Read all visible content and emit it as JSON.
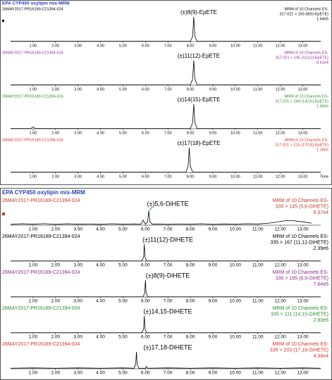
{
  "chart_data": [
    {
      "type": "line",
      "panel_title": "EPA CYP450 oxylipin mix-MRM",
      "sample": "26MAY2017-PR16189-C21394-024",
      "title": "(±)8(9)-EpETE",
      "mrm": [
        "MRM of 10 Channels ES-",
        "317.021 > 155 (8(9)-EpETE)"
      ],
      "intensity": "1.64e5",
      "color": "#000000",
      "line_color": "#000000",
      "x": [
        0,
        8.0,
        8.1,
        8.15,
        8.2,
        8.3,
        13.8
      ],
      "values": [
        1,
        1,
        20,
        100,
        20,
        1,
        1
      ],
      "xlim": [
        0,
        13.8
      ],
      "ylim": [
        0,
        100
      ],
      "xticks": [
        {
          "value": 1,
          "label": "1.00"
        },
        {
          "value": 2,
          "label": "2.00"
        },
        {
          "value": 3,
          "label": "3.00"
        },
        {
          "value": 4,
          "label": "4.00"
        },
        {
          "value": 5,
          "label": "5.00"
        },
        {
          "value": 6,
          "label": "6.00"
        },
        {
          "value": 7,
          "label": "7.00"
        },
        {
          "value": 8,
          "label": "8.00"
        },
        {
          "value": 9,
          "label": "9.00"
        },
        {
          "value": 10,
          "label": "10.00"
        },
        {
          "value": 11,
          "label": "11.00"
        },
        {
          "value": 12,
          "label": "12.00"
        },
        {
          "value": 13,
          "label": "13.00"
        }
      ]
    },
    {
      "type": "line",
      "sample": "26MAY2017-PR16189-C21394-024",
      "title": "(±)11(12)-EpETE",
      "mrm": [
        "MRM of 10 Channels ES-",
        "317.021 > 195 (11(12)-EpETE)"
      ],
      "intensity": "8.61e4",
      "color": "#8e2a8e",
      "line_color": "#000000",
      "x": [
        0,
        8.0,
        8.1,
        8.15,
        8.2,
        8.3,
        13.8
      ],
      "values": [
        1,
        1,
        25,
        100,
        25,
        1,
        1
      ],
      "xlim": [
        0,
        13.8
      ],
      "ylim": [
        0,
        100
      ],
      "xticks": [
        {
          "value": 1,
          "label": "1.00"
        },
        {
          "value": 2,
          "label": "2.00"
        },
        {
          "value": 3,
          "label": "3.00"
        },
        {
          "value": 4,
          "label": "4.00"
        },
        {
          "value": 5,
          "label": "5.00"
        },
        {
          "value": 6,
          "label": "6.00"
        },
        {
          "value": 7,
          "label": "7.00"
        },
        {
          "value": 8,
          "label": "8.00"
        },
        {
          "value": 9,
          "label": "9.00"
        },
        {
          "value": 10,
          "label": "10.00"
        },
        {
          "value": 11,
          "label": "11.00"
        },
        {
          "value": 12,
          "label": "12.00"
        },
        {
          "value": 13,
          "label": "13.00"
        }
      ]
    },
    {
      "type": "line",
      "sample": "26MAY2017-PR16189-C21394-024",
      "title": "(±)14(15)-EpETE",
      "mrm": [
        "MRM of 10 Channels ES-",
        "317.021 > 249 (14(15)-EpETE)"
      ],
      "intensity": "1.68e5",
      "color": "#2e8b2e",
      "line_color": "#000000",
      "x": [
        0,
        0.9,
        1.0,
        1.1,
        8.0,
        8.1,
        8.15,
        8.2,
        8.3,
        13.8
      ],
      "values": [
        1,
        1,
        8,
        1,
        1,
        25,
        100,
        25,
        1,
        1
      ],
      "xlim": [
        0,
        13.8
      ],
      "ylim": [
        0,
        100
      ],
      "xticks": [
        {
          "value": 1,
          "label": "1.00"
        },
        {
          "value": 2,
          "label": "2.00"
        },
        {
          "value": 3,
          "label": "3.00"
        },
        {
          "value": 4,
          "label": "4.00"
        },
        {
          "value": 5,
          "label": "5.00"
        },
        {
          "value": 6,
          "label": "6.00"
        },
        {
          "value": 7,
          "label": "7.00"
        },
        {
          "value": 8,
          "label": "8.00"
        },
        {
          "value": 9,
          "label": "9.00"
        },
        {
          "value": 10,
          "label": "10.00"
        },
        {
          "value": 11,
          "label": "11.00"
        },
        {
          "value": 12,
          "label": "12.00"
        },
        {
          "value": 13,
          "label": "13.00"
        }
      ]
    },
    {
      "type": "line",
      "sample": "26MAY2017-PR16189-C21394-024",
      "title": "(±)17(18)-EpETE",
      "mrm": [
        "MRM of 10 Channels ES-",
        "317.021 > 215 (17(18)-EpETE)"
      ],
      "intensity": "1.39e5",
      "color": "#d9302c",
      "line_color": "#000000",
      "x_label": "Time",
      "x": [
        0,
        7.8,
        7.9,
        7.95,
        8.0,
        8.1,
        13.8
      ],
      "values": [
        1,
        1,
        25,
        100,
        25,
        1,
        1
      ],
      "xlim": [
        0,
        13.8
      ],
      "ylim": [
        0,
        100
      ],
      "xticks": [
        {
          "value": 1,
          "label": "1.00"
        },
        {
          "value": 2,
          "label": "2.00"
        },
        {
          "value": 3,
          "label": "3.00"
        },
        {
          "value": 4,
          "label": "4.00"
        },
        {
          "value": 5,
          "label": "5.00"
        },
        {
          "value": 6,
          "label": "6.00"
        },
        {
          "value": 7,
          "label": "7.00"
        },
        {
          "value": 8,
          "label": "8.00"
        },
        {
          "value": 9,
          "label": "9.00"
        },
        {
          "value": 10,
          "label": "10.00"
        },
        {
          "value": 11,
          "label": "11.00"
        },
        {
          "value": 12,
          "label": "12.00"
        },
        {
          "value": 13,
          "label": "13.00"
        }
      ]
    },
    {
      "type": "line",
      "panel_title": "EPA CYP450 oxylipin mix-MRM",
      "sample": "26MAY2017-PR16189-C21394-024",
      "title": "(±)5,6-DiHETE",
      "mrm": [
        "MRM of 10 Channels ES-",
        "335 > 145 (5,6-DiHETE)"
      ],
      "intensity": "6.37e4",
      "color": "#c0392b",
      "line_color": "#000000",
      "x": [
        0,
        0.5,
        1,
        1.5,
        2,
        2.5,
        3,
        3.5,
        4,
        4.5,
        5,
        5.5,
        5.8,
        5.9,
        6.0,
        6.1,
        6.15,
        6.2,
        6.3,
        6.5,
        7,
        7.5,
        8,
        8.5,
        9,
        9.5,
        10,
        10.5,
        11,
        11.5,
        12,
        12.3,
        12.6,
        13,
        13.4
      ],
      "values": [
        5,
        8,
        6,
        9,
        5,
        8,
        6,
        7,
        5,
        8,
        6,
        7,
        6,
        30,
        6,
        20,
        85,
        20,
        6,
        7,
        5,
        7,
        6,
        8,
        5,
        7,
        6,
        8,
        7,
        12,
        22,
        28,
        26,
        20,
        12
      ],
      "xlim": [
        0,
        13.8
      ],
      "ylim": [
        0,
        100
      ],
      "xticks": [
        {
          "value": 1,
          "label": "1.00"
        },
        {
          "value": 2,
          "label": "2.00"
        },
        {
          "value": 3,
          "label": "3.00"
        },
        {
          "value": 4,
          "label": "4.00"
        },
        {
          "value": 5,
          "label": "5.00"
        },
        {
          "value": 6,
          "label": "6.00"
        },
        {
          "value": 7,
          "label": "7.00"
        },
        {
          "value": 8,
          "label": "8.00"
        },
        {
          "value": 9,
          "label": "9.00"
        },
        {
          "value": 10,
          "label": "10.00"
        },
        {
          "value": 11,
          "label": "11.00"
        },
        {
          "value": 12,
          "label": "12.00"
        },
        {
          "value": 13,
          "label": "13.00"
        }
      ]
    },
    {
      "type": "line",
      "sample": "26MAY2017-PR16189-C21394-024",
      "title": "(±)11(12)-DiHETE",
      "mrm": [
        "MRM of 10 Channels ES-",
        "335 > 167 (11,12-DiHETE)"
      ],
      "intensity": "2.39e6",
      "color": "#000000",
      "line_color": "#000000",
      "x": [
        0,
        5.85,
        5.92,
        5.95,
        5.98,
        6.05,
        13.8
      ],
      "values": [
        1,
        1,
        25,
        100,
        25,
        1,
        1
      ],
      "xlim": [
        0,
        13.8
      ],
      "ylim": [
        0,
        100
      ],
      "xticks": [
        {
          "value": 1,
          "label": "1.00"
        },
        {
          "value": 2,
          "label": "2.00"
        },
        {
          "value": 3,
          "label": "3.00"
        },
        {
          "value": 4,
          "label": "4.00"
        },
        {
          "value": 5,
          "label": "5.00"
        },
        {
          "value": 6,
          "label": "6.00"
        },
        {
          "value": 7,
          "label": "7.00"
        },
        {
          "value": 8,
          "label": "8.00"
        },
        {
          "value": 9,
          "label": "9.00"
        },
        {
          "value": 10,
          "label": "10.00"
        },
        {
          "value": 11,
          "label": "11.00"
        },
        {
          "value": 12,
          "label": "12.00"
        },
        {
          "value": 13,
          "label": "13.00"
        }
      ]
    },
    {
      "type": "line",
      "sample": "26MAY2017-PR16189-C21394-024",
      "title": "(±)8(9)-DiHETE",
      "mrm": [
        "MRM of 10 Channels ES-",
        "335 > 185 (8,9-DiHETE)"
      ],
      "intensity": "7.64e5",
      "color": "#8e2a8e",
      "line_color": "#000000",
      "x": [
        0,
        5.9,
        5.97,
        6.0,
        6.03,
        6.1,
        13.8
      ],
      "values": [
        1,
        1,
        25,
        100,
        25,
        1,
        1
      ],
      "xlim": [
        0,
        13.8
      ],
      "ylim": [
        0,
        100
      ],
      "xticks": [
        {
          "value": 1,
          "label": "1.00"
        },
        {
          "value": 2,
          "label": "2.00"
        },
        {
          "value": 3,
          "label": "3.00"
        },
        {
          "value": 4,
          "label": "4.00"
        },
        {
          "value": 5,
          "label": "5.00"
        },
        {
          "value": 6,
          "label": "6.00"
        },
        {
          "value": 7,
          "label": "7.00"
        },
        {
          "value": 8,
          "label": "8.00"
        },
        {
          "value": 9,
          "label": "9.00"
        },
        {
          "value": 10,
          "label": "10.00"
        },
        {
          "value": 11,
          "label": "11.00"
        },
        {
          "value": 12,
          "label": "12.00"
        },
        {
          "value": 13,
          "label": "13.00"
        }
      ]
    },
    {
      "type": "line",
      "sample": "26MAY2017-PR16189-C21394-024",
      "title": "(±)14,15-DiHETE",
      "mrm": [
        "MRM of 10 Channels ES-",
        "335 > 111 (14,15-DiHETE)"
      ],
      "intensity": "2.83e5",
      "color": "#2e8b2e",
      "line_color": "#000000",
      "x": [
        0,
        5.85,
        5.92,
        5.95,
        5.98,
        6.05,
        13.8
      ],
      "values": [
        1,
        1,
        25,
        100,
        25,
        1,
        1
      ],
      "xlim": [
        0,
        13.8
      ],
      "ylim": [
        0,
        100
      ],
      "xticks": [
        {
          "value": 1,
          "label": "1.00"
        },
        {
          "value": 2,
          "label": "2.00"
        },
        {
          "value": 3,
          "label": "3.00"
        },
        {
          "value": 4,
          "label": "4.00"
        },
        {
          "value": 5,
          "label": "5.00"
        },
        {
          "value": 6,
          "label": "6.00"
        },
        {
          "value": 7,
          "label": "7.00"
        },
        {
          "value": 8,
          "label": "8.00"
        },
        {
          "value": 9,
          "label": "9.00"
        },
        {
          "value": 10,
          "label": "10.00"
        },
        {
          "value": 11,
          "label": "11.00"
        },
        {
          "value": 12,
          "label": "12.00"
        },
        {
          "value": 13,
          "label": "13.00"
        }
      ]
    },
    {
      "type": "line",
      "sample": "26MAY2017-PR16189-C21394-024",
      "title": "(±)17,18-DiHETE",
      "mrm": [
        "MRM of 10 Channels ES-",
        "335 > 203 (17,18-DiHETE)"
      ],
      "intensity": "4.34e4",
      "color": "#d9302c",
      "line_color": "#000000",
      "x": [
        0,
        1,
        2,
        3,
        4,
        5,
        5.5,
        5.57,
        5.6,
        5.63,
        5.7,
        6.0,
        6.05,
        6.1,
        7,
        8,
        9,
        10,
        11,
        12,
        13,
        13.8
      ],
      "values": [
        3,
        5,
        3,
        5,
        3,
        5,
        3,
        30,
        100,
        30,
        3,
        3,
        15,
        3,
        5,
        3,
        5,
        3,
        5,
        3,
        5,
        3
      ],
      "xlim": [
        0,
        13.8
      ],
      "ylim": [
        0,
        100
      ],
      "xticks": [
        {
          "value": 1,
          "label": "1.00"
        },
        {
          "value": 2,
          "label": "2.00"
        },
        {
          "value": 3,
          "label": "3.00"
        },
        {
          "value": 4,
          "label": "4.00"
        },
        {
          "value": 5,
          "label": "5.00"
        },
        {
          "value": 6,
          "label": "6.00"
        },
        {
          "value": 7,
          "label": "7.00"
        },
        {
          "value": 8,
          "label": "8.00"
        },
        {
          "value": 9,
          "label": "9.00"
        },
        {
          "value": 10,
          "label": "10.00"
        },
        {
          "value": 11,
          "label": "11.00"
        },
        {
          "value": 12,
          "label": "12.00"
        },
        {
          "value": 13,
          "label": "13.00"
        }
      ]
    }
  ]
}
